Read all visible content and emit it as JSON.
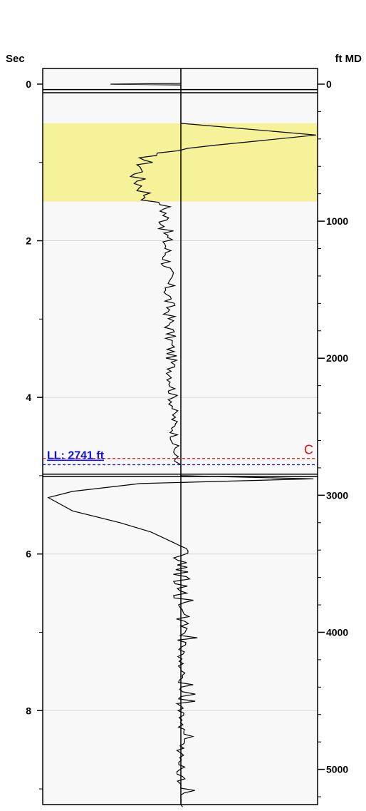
{
  "chart_data": {
    "type": "line",
    "left_axis": {
      "label": "Sec",
      "range": [
        -0.2,
        9.2
      ],
      "major_ticks": [
        0,
        2,
        4,
        6,
        8
      ],
      "tick_labels": [
        "0",
        "2",
        "4",
        "6",
        "8"
      ],
      "minor_step": 1,
      "gridlines": [
        2,
        4,
        6,
        8
      ]
    },
    "right_axis": {
      "label": "ft MD",
      "range": [
        0,
        5200
      ],
      "major_ticks": [
        0,
        1000,
        2000,
        3000,
        4000,
        5000
      ],
      "tick_labels": [
        "0",
        "1000",
        "2000",
        "3000",
        "4000",
        "5000"
      ],
      "minor_step": 200
    },
    "highlight_band": {
      "from": 0.5,
      "to": 1.5,
      "color": "#f6f29a"
    },
    "horizontal_lines": [
      {
        "y": 0.07,
        "style": "solid",
        "color": "#000000"
      },
      {
        "y": 0.11,
        "style": "solid",
        "color": "#000000"
      },
      {
        "y": 4.98,
        "style": "solid",
        "color": "#000000"
      },
      {
        "y": 5.01,
        "style": "solid",
        "color": "#000000"
      },
      {
        "y": 4.78,
        "style": "dashed",
        "color": "#e01010"
      },
      {
        "y": 4.86,
        "style": "dashed",
        "color": "#1010e0"
      }
    ],
    "annotations": [
      {
        "text": "LL: 2741 ft",
        "color": "#1010e0",
        "anchor": "left",
        "y": 4.86
      },
      {
        "text": "C",
        "color": "#e01010",
        "anchor": "right",
        "y": 4.78
      }
    ],
    "series": [
      {
        "color": "#000000",
        "segments": [
          {
            "points": [
              [
                -0.2,
                0.0
              ],
              [
                -0.01,
                0.0
              ],
              [
                0.0,
                -0.52
              ],
              [
                0.01,
                0.0
              ],
              [
                0.2,
                0.0
              ],
              [
                0.5,
                0.0
              ]
            ]
          },
          {
            "points": [
              [
                0.5,
                0.0
              ]
            ]
          },
          {
            "points": [
              [
                4.78,
                0.0
              ],
              [
                4.86,
                0.0
              ]
            ]
          },
          {
            "points": [
              [
                5.0,
                0.0
              ],
              [
                5.05,
                0.98
              ],
              [
                5.1,
                -0.2
              ],
              [
                5.2,
                -0.7
              ],
              [
                5.3,
                -0.95
              ],
              [
                5.45,
                -0.85
              ],
              [
                5.6,
                -0.55
              ],
              [
                5.7,
                -0.3
              ],
              [
                5.75,
                -0.18
              ],
              [
                5.82,
                -0.05
              ],
              [
                5.9,
                0.0
              ]
            ]
          },
          {
            "points": [
              [
                5.9,
                0.0
              ]
            ]
          }
        ]
      }
    ],
    "grid": true
  }
}
